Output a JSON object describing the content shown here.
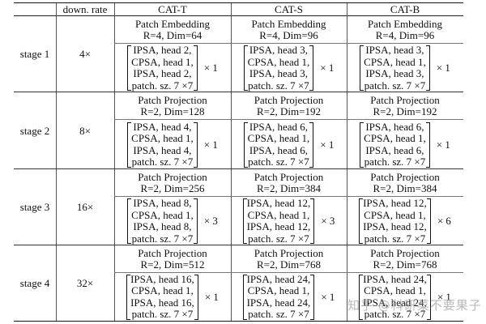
{
  "table": {
    "headers": [
      "",
      "down. rate",
      "CAT-T",
      "CAT-S",
      "CAT-B"
    ],
    "stages": [
      {
        "label": "stage 1",
        "down_rate": "4×",
        "models": [
          {
            "patch_title": "Patch Embedding",
            "patch_params": "R=4, Dim=64",
            "block_lines": [
              "IPSA, head 2,",
              "CPSA, head 1,",
              "IPSA, head 2,",
              "patch. sz. 7 ×7"
            ],
            "repeat": "× 1"
          },
          {
            "patch_title": "Patch Embedding",
            "patch_params": "R=4, Dim=96",
            "block_lines": [
              "IPSA, head 3,",
              "CPSA, head 1,",
              "IPSA, head 3,",
              "patch. sz. 7 ×7"
            ],
            "repeat": "× 1"
          },
          {
            "patch_title": "Patch Embedding",
            "patch_params": "R=4, Dim=96",
            "block_lines": [
              "IPSA, head 3,",
              "CPSA, head 1,",
              "IPSA, head 3,",
              "patch. sz. 7 ×7"
            ],
            "repeat": "× 1"
          }
        ]
      },
      {
        "label": "stage 2",
        "down_rate": "8×",
        "models": [
          {
            "patch_title": "Patch Projection",
            "patch_params": "R=2, Dim=128",
            "block_lines": [
              "IPSA, head 4,",
              "CPSA, head 1,",
              "IPSA, head 4,",
              "patch. sz. 7 ×7"
            ],
            "repeat": "× 1"
          },
          {
            "patch_title": "Patch Projection",
            "patch_params": "R=2, Dim=192",
            "block_lines": [
              "IPSA, head 6,",
              "CPSA, head 1,",
              "IPSA, head 6,",
              "patch. sz. 7 ×7"
            ],
            "repeat": "× 1"
          },
          {
            "patch_title": "Patch Projection",
            "patch_params": "R=2, Dim=192",
            "block_lines": [
              "IPSA, head 6,",
              "CPSA, head 1,",
              "IPSA, head 6,",
              "patch. sz. 7 ×7"
            ],
            "repeat": "× 1"
          }
        ]
      },
      {
        "label": "stage 3",
        "down_rate": "16×",
        "models": [
          {
            "patch_title": "Patch Projection",
            "patch_params": "R=2, Dim=256",
            "block_lines": [
              "IPSA, head 8,",
              "CPSA, head 1,",
              "IPSA, head 8,",
              "patch. sz. 7 ×7"
            ],
            "repeat": "× 3"
          },
          {
            "patch_title": "Patch Projection",
            "patch_params": "R=2, Dim=384",
            "block_lines": [
              "IPSA, head 12,",
              "CPSA, head 1,",
              "IPSA, head 12,",
              "patch. sz. 7 ×7"
            ],
            "repeat": "× 3"
          },
          {
            "patch_title": "Patch Projection",
            "patch_params": "R=2, Dim=384",
            "block_lines": [
              "IPSA, head 12,",
              "CPSA, head 1,",
              "IPSA, head 12,",
              "patch. sz. 7 ×7"
            ],
            "repeat": "× 6"
          }
        ]
      },
      {
        "label": "stage 4",
        "down_rate": "32×",
        "models": [
          {
            "patch_title": "Patch Projection",
            "patch_params": "R=2, Dim=512",
            "block_lines": [
              "IPSA, head 16,",
              "CPSA, head 1,",
              "IPSA, head 16,",
              "patch. sz. 7 ×7"
            ],
            "repeat": "× 1"
          },
          {
            "patch_title": "Patch Projection",
            "patch_params": "R=2, Dim=768",
            "block_lines": [
              "IPSA, head 24,",
              "CPSA, head 1,",
              "IPSA, head 24,",
              "patch. sz. 7 ×7"
            ],
            "repeat": "× 1"
          },
          {
            "patch_title": "Patch Projection",
            "patch_params": "R=2, Dim=768",
            "block_lines": [
              "IPSA, head 24,",
              "CPSA, head 1,",
              "IPSA, head 24,",
              "patch. sz. 7 ×7"
            ],
            "repeat": "× 1"
          }
        ]
      }
    ]
  },
  "watermark": "知乎 @科研菜不要果子"
}
